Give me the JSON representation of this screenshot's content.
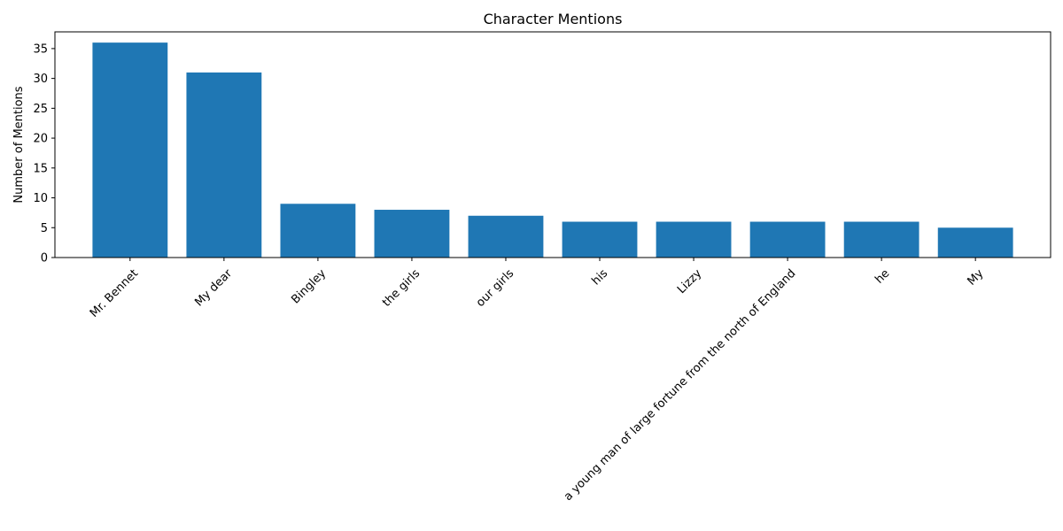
{
  "chart_data": {
    "type": "bar",
    "title": "Character Mentions",
    "xlabel": "",
    "ylabel": "Number of Mentions",
    "categories": [
      "Mr. Bennet",
      "My dear",
      "Bingley",
      "the girls",
      "our girls",
      "his",
      "Lizzy",
      "a young man of large fortune from the north of England",
      "he",
      "My"
    ],
    "values": [
      36,
      31,
      9,
      8,
      7,
      6,
      6,
      6,
      6,
      5
    ],
    "ylim": [
      0,
      37.8
    ],
    "yticks": [
      0,
      5,
      10,
      15,
      20,
      25,
      30,
      35
    ],
    "bar_color": "#1f77b4",
    "grid": false,
    "legend": "none"
  }
}
